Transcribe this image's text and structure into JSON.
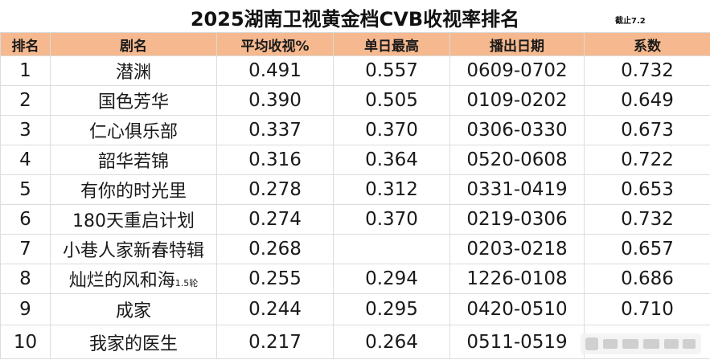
{
  "title": "2025湖南卫视黄金档CVB收视率排名",
  "as_of": "截止7.2",
  "headers": [
    "排名",
    "剧名",
    "平均收视%",
    "单日最高",
    "播出日期",
    "系数"
  ],
  "rows": [
    {
      "rank": "1",
      "name": "潜渊",
      "note": "",
      "avg": "0.491",
      "peak": "0.557",
      "dates": "0609-0702",
      "coef": "0.732"
    },
    {
      "rank": "2",
      "name": "国色芳华",
      "note": "",
      "avg": "0.390",
      "peak": "0.505",
      "dates": "0109-0202",
      "coef": "0.649"
    },
    {
      "rank": "3",
      "name": "仁心俱乐部",
      "note": "",
      "avg": "0.337",
      "peak": "0.370",
      "dates": "0306-0330",
      "coef": "0.673"
    },
    {
      "rank": "4",
      "name": "韶华若锦",
      "note": "",
      "avg": "0.316",
      "peak": "0.364",
      "dates": "0520-0608",
      "coef": "0.722"
    },
    {
      "rank": "5",
      "name": "有你的时光里",
      "note": "",
      "avg": "0.278",
      "peak": "0.312",
      "dates": "0331-0419",
      "coef": "0.653"
    },
    {
      "rank": "6",
      "name": "180天重启计划",
      "note": "",
      "avg": "0.274",
      "peak": "0.370",
      "dates": "0219-0306",
      "coef": "0.732"
    },
    {
      "rank": "7",
      "name": "小巷人家新春特辑",
      "note": "",
      "avg": "0.268",
      "peak": "",
      "dates": "0203-0218",
      "coef": "0.657"
    },
    {
      "rank": "8",
      "name": "灿烂的风和海",
      "note": "1.5轮",
      "avg": "0.255",
      "peak": "0.294",
      "dates": "1226-0108",
      "coef": "0.686"
    },
    {
      "rank": "9",
      "name": "成家",
      "note": "",
      "avg": "0.244",
      "peak": "0.295",
      "dates": "0420-0510",
      "coef": "0.710"
    },
    {
      "rank": "10",
      "name": "我家的医生",
      "note": "",
      "avg": "0.217",
      "peak": "0.264",
      "dates": "0511-0519",
      "coef": ""
    }
  ]
}
